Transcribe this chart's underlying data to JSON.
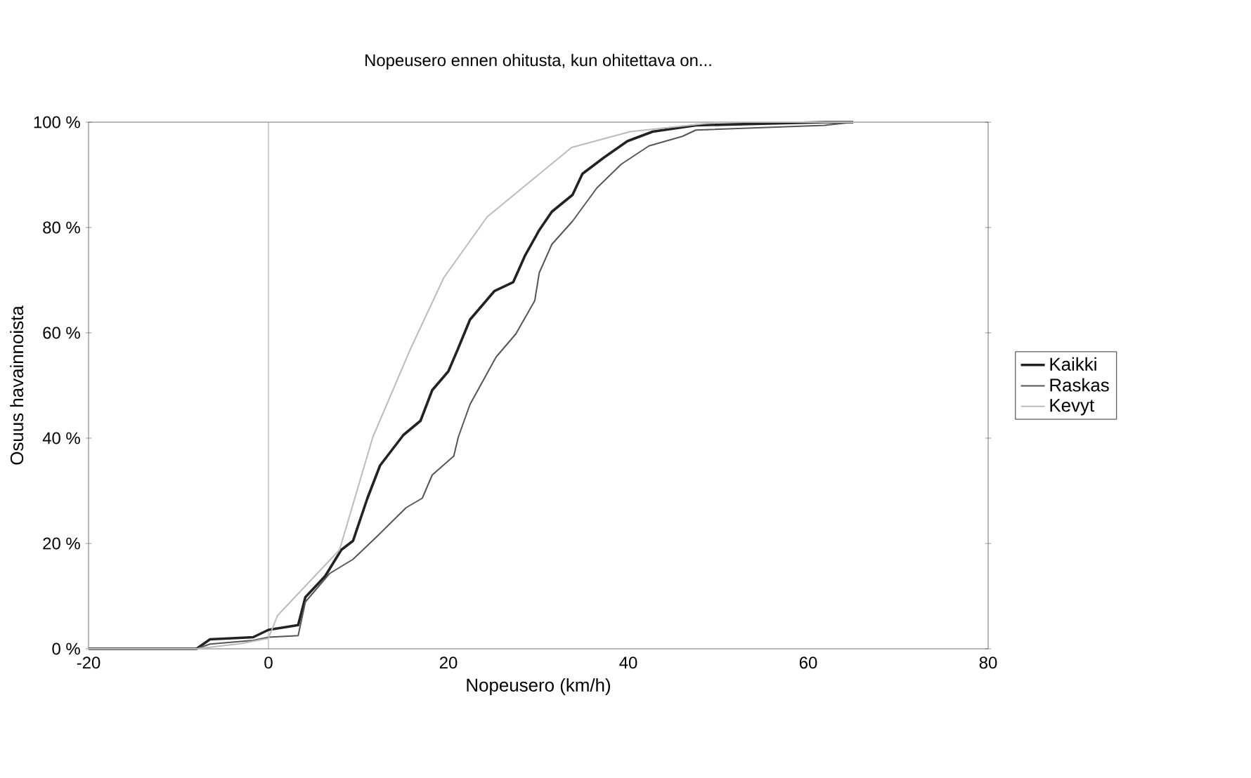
{
  "chart_data": {
    "type": "line",
    "title": "Nopeusero ennen ohitusta, kun ohitettava on...",
    "xlabel": "Nopeusero (km/h)",
    "ylabel": "Osuus havainnoista",
    "xlim": [
      -20,
      80
    ],
    "xticks": [
      -20,
      0,
      20,
      40,
      60,
      80
    ],
    "ylim": [
      0,
      100
    ],
    "yticks": [
      {
        "value": 0,
        "label": "0 %"
      },
      {
        "value": 20,
        "label": "20 %"
      },
      {
        "value": 40,
        "label": "40 %"
      },
      {
        "value": 60,
        "label": "60 %"
      },
      {
        "value": 80,
        "label": "80 %"
      },
      {
        "value": 100,
        "label": "100 %"
      }
    ],
    "grid": false,
    "legend": "right",
    "marker": "none",
    "ref_lines": [
      {
        "axis": "x",
        "value": 0,
        "color": "#888888"
      }
    ],
    "series": [
      {
        "name": "Kaikki",
        "color": "#222222",
        "x": [
          -20,
          -8,
          -6.5,
          -1.7,
          0,
          3.3,
          4.1,
          6.3,
          8.1,
          9.4,
          11,
          12.4,
          15,
          16.9,
          18.2,
          20,
          21.1,
          22.4,
          25.1,
          27.2,
          28.5,
          30.1,
          31.5,
          33.8,
          34.9,
          37.3,
          39.9,
          42.7,
          47.5,
          61.8,
          65
        ],
        "values": [
          0,
          0,
          1.8,
          2.2,
          3.6,
          4.5,
          9.8,
          13.8,
          18.8,
          20.5,
          28.6,
          34.8,
          40.6,
          43.3,
          49.1,
          52.7,
          57.1,
          62.5,
          67.9,
          69.6,
          74.6,
          79.5,
          83,
          86.2,
          90.2,
          93.3,
          96.4,
          98.2,
          99.4,
          100,
          100
        ]
      },
      {
        "name": "Raskas",
        "color": "#555555",
        "x": [
          -20,
          -8,
          -6.5,
          -1.7,
          0,
          3.3,
          4.1,
          6.8,
          9.4,
          12.1,
          15.3,
          17.1,
          18.2,
          20.6,
          21.1,
          22.4,
          25.3,
          27.5,
          29.6,
          30.1,
          31.5,
          33.8,
          36.5,
          39.2,
          42.3,
          46,
          47.5,
          61.8,
          65
        ],
        "values": [
          0,
          0,
          0.9,
          1.6,
          2.2,
          2.5,
          8.9,
          14.3,
          17,
          21.4,
          26.8,
          28.6,
          33,
          36.6,
          40.2,
          46.4,
          55.4,
          59.8,
          66.1,
          71.4,
          76.8,
          81.2,
          87.5,
          92,
          95.5,
          97.3,
          98.5,
          99.4,
          100
        ]
      },
      {
        "name": "Kevyt",
        "color": "#bbbbbb",
        "x": [
          -20,
          -8,
          -3,
          0,
          1,
          7.9,
          11.6,
          15.8,
          19.5,
          24.3,
          33.7,
          40.2,
          50,
          65
        ],
        "values": [
          0,
          0,
          1,
          2,
          6.3,
          18.8,
          40.2,
          57,
          70.5,
          82,
          95.2,
          98.2,
          100,
          100
        ]
      }
    ]
  }
}
